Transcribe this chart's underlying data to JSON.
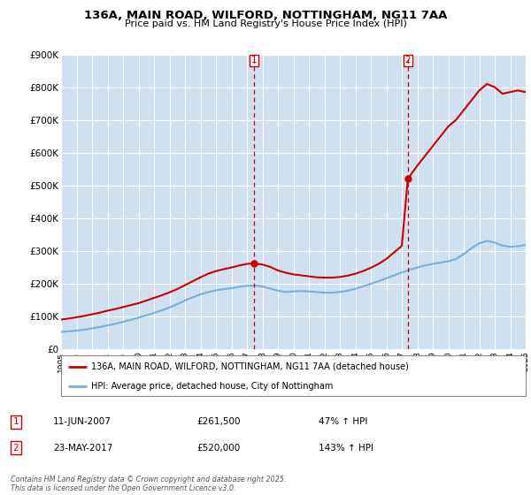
{
  "title": "136A, MAIN ROAD, WILFORD, NOTTINGHAM, NG11 7AA",
  "subtitle": "Price paid vs. HM Land Registry's House Price Index (HPI)",
  "title_fontsize": 9.5,
  "subtitle_fontsize": 8,
  "ylim": [
    0,
    900000
  ],
  "yticks": [
    0,
    100000,
    200000,
    300000,
    400000,
    500000,
    600000,
    700000,
    800000,
    900000
  ],
  "ytick_labels": [
    "£0",
    "£100K",
    "£200K",
    "£300K",
    "£400K",
    "£500K",
    "£600K",
    "£700K",
    "£800K",
    "£900K"
  ],
  "background_color": "#dce9f5",
  "plot_bg_color": "#cfe0f0",
  "grid_color": "#ffffff",
  "red_color": "#cc0000",
  "blue_color": "#7aafda",
  "sale1_year": 2007.44,
  "sale1_price": 261500,
  "sale1_label": "1",
  "sale1_date": "11-JUN-2007",
  "sale1_price_str": "£261,500",
  "sale1_hpi_pct": "47% ↑ HPI",
  "sale2_year": 2017.39,
  "sale2_price": 520000,
  "sale2_label": "2",
  "sale2_date": "23-MAY-2017",
  "sale2_price_str": "£520,000",
  "sale2_hpi_pct": "143% ↑ HPI",
  "legend_label_red": "136A, MAIN ROAD, WILFORD, NOTTINGHAM, NG11 7AA (detached house)",
  "legend_label_blue": "HPI: Average price, detached house, City of Nottingham",
  "footnote": "Contains HM Land Registry data © Crown copyright and database right 2025.\nThis data is licensed under the Open Government Licence v3.0.",
  "hpi_years": [
    1995,
    1995.5,
    1996,
    1996.5,
    1997,
    1997.5,
    1998,
    1998.5,
    1999,
    1999.5,
    2000,
    2000.5,
    2001,
    2001.5,
    2002,
    2002.5,
    2003,
    2003.5,
    2004,
    2004.5,
    2005,
    2005.5,
    2006,
    2006.5,
    2007,
    2007.5,
    2008,
    2008.5,
    2009,
    2009.5,
    2010,
    2010.5,
    2011,
    2011.5,
    2012,
    2012.5,
    2013,
    2013.5,
    2014,
    2014.5,
    2015,
    2015.5,
    2016,
    2016.5,
    2017,
    2017.5,
    2018,
    2018.5,
    2019,
    2019.5,
    2020,
    2020.5,
    2021,
    2021.5,
    2022,
    2022.5,
    2023,
    2023.5,
    2024,
    2024.5,
    2025
  ],
  "hpi_values": [
    52000,
    54000,
    56000,
    59000,
    63000,
    67000,
    72000,
    77000,
    83000,
    89000,
    96000,
    103000,
    110000,
    118000,
    127000,
    137000,
    148000,
    158000,
    167000,
    174000,
    179000,
    183000,
    186000,
    190000,
    193000,
    194000,
    191000,
    185000,
    178000,
    174000,
    176000,
    177000,
    176000,
    174000,
    172000,
    172000,
    174000,
    178000,
    184000,
    191000,
    199000,
    207000,
    216000,
    225000,
    234000,
    242000,
    249000,
    255000,
    260000,
    264000,
    268000,
    275000,
    290000,
    308000,
    323000,
    330000,
    325000,
    316000,
    312000,
    314000,
    318000
  ],
  "prop_years": [
    1995,
    1995.5,
    1996,
    1996.5,
    1997,
    1997.5,
    1998,
    1998.5,
    1999,
    1999.5,
    2000,
    2000.5,
    2001,
    2001.5,
    2002,
    2002.5,
    2003,
    2003.5,
    2004,
    2004.5,
    2005,
    2005.5,
    2006,
    2006.5,
    2007,
    2007.44,
    2008,
    2008.5,
    2009,
    2009.5,
    2010,
    2010.5,
    2011,
    2011.5,
    2012,
    2012.5,
    2013,
    2013.5,
    2014,
    2014.5,
    2015,
    2015.5,
    2016,
    2016.5,
    2017,
    2017.39,
    2018,
    2018.5,
    2019,
    2019.5,
    2020,
    2020.5,
    2021,
    2021.5,
    2022,
    2022.5,
    2023,
    2023.5,
    2024,
    2024.5,
    2025
  ],
  "prop_values": [
    90000,
    93000,
    97000,
    101000,
    106000,
    111000,
    117000,
    122000,
    128000,
    134000,
    140000,
    148000,
    156000,
    164000,
    173000,
    183000,
    195000,
    207000,
    219000,
    230000,
    238000,
    244000,
    249000,
    255000,
    260000,
    261500,
    258000,
    251000,
    240000,
    233000,
    228000,
    225000,
    222000,
    219000,
    218000,
    218000,
    220000,
    224000,
    230000,
    238000,
    248000,
    260000,
    275000,
    295000,
    315000,
    520000,
    560000,
    590000,
    620000,
    650000,
    680000,
    700000,
    730000,
    760000,
    790000,
    810000,
    800000,
    780000,
    785000,
    790000,
    785000
  ]
}
